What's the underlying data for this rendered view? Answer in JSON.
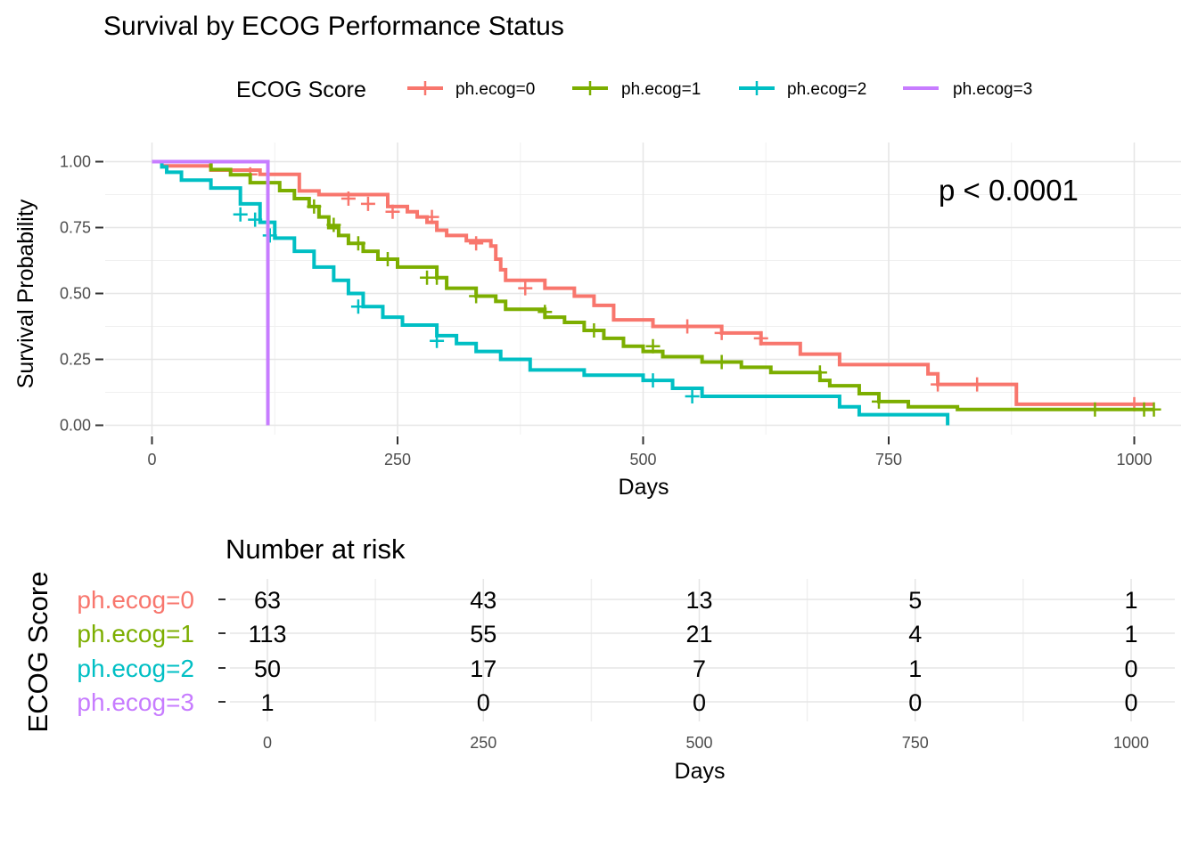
{
  "chart_data": [
    {
      "type": "line",
      "step": true,
      "title": "Survival by ECOG Performance Status",
      "xlabel": "Days",
      "ylabel": "Survival Probability",
      "xlim": [
        -50,
        1040
      ],
      "ylim": [
        -0.02,
        1.03
      ],
      "x_ticks": [
        0,
        250,
        500,
        750,
        1000
      ],
      "y_ticks": [
        0.0,
        0.25,
        0.5,
        0.75,
        1.0
      ],
      "y_tick_labels": [
        "0.00",
        "0.25",
        "0.50",
        "0.75",
        "1.00"
      ],
      "grid": true,
      "legend": {
        "title": "ECOG Score",
        "position": "top",
        "entries": [
          "ph.ecog=0",
          "ph.ecog=1",
          "ph.ecog=2",
          "ph.ecog=3"
        ]
      },
      "annotation": "p < 0.0001",
      "series": [
        {
          "name": "ph.ecog=0",
          "color": "#F8766D",
          "x": [
            0,
            10,
            60,
            110,
            150,
            170,
            240,
            260,
            270,
            280,
            290,
            300,
            320,
            345,
            350,
            355,
            360,
            400,
            430,
            450,
            470,
            510,
            560,
            580,
            620,
            650,
            660,
            700,
            740,
            790,
            800,
            850,
            880,
            1020
          ],
          "y": [
            1.0,
            0.984,
            0.968,
            0.952,
            0.889,
            0.875,
            0.83,
            0.81,
            0.79,
            0.77,
            0.74,
            0.72,
            0.7,
            0.68,
            0.63,
            0.59,
            0.55,
            0.52,
            0.49,
            0.455,
            0.4,
            0.375,
            0.375,
            0.35,
            0.31,
            0.31,
            0.27,
            0.23,
            0.23,
            0.195,
            0.155,
            0.155,
            0.08,
            0.08
          ],
          "censors": [
            [
              100,
              0.952
            ],
            [
              200,
              0.86
            ],
            [
              220,
              0.84
            ],
            [
              245,
              0.81
            ],
            [
              285,
              0.79
            ],
            [
              330,
              0.69
            ],
            [
              380,
              0.52
            ],
            [
              545,
              0.375
            ],
            [
              580,
              0.35
            ],
            [
              620,
              0.33
            ],
            [
              800,
              0.155
            ],
            [
              840,
              0.155
            ],
            [
              1000,
              0.08
            ]
          ]
        },
        {
          "name": "ph.ecog=1",
          "color": "#7CAE00",
          "x": [
            0,
            60,
            80,
            100,
            130,
            145,
            160,
            170,
            180,
            190,
            200,
            215,
            230,
            250,
            290,
            300,
            330,
            350,
            360,
            400,
            420,
            440,
            460,
            480,
            500,
            520,
            560,
            600,
            630,
            680,
            690,
            720,
            740,
            770,
            820,
            900,
            960,
            1020
          ],
          "y": [
            1.0,
            0.97,
            0.95,
            0.92,
            0.89,
            0.86,
            0.83,
            0.79,
            0.75,
            0.72,
            0.69,
            0.66,
            0.63,
            0.6,
            0.56,
            0.52,
            0.49,
            0.47,
            0.44,
            0.41,
            0.39,
            0.36,
            0.33,
            0.3,
            0.28,
            0.26,
            0.24,
            0.22,
            0.2,
            0.17,
            0.15,
            0.12,
            0.09,
            0.07,
            0.06,
            0.06,
            0.06,
            0.06
          ],
          "censors": [
            [
              165,
              0.83
            ],
            [
              185,
              0.76
            ],
            [
              210,
              0.69
            ],
            [
              240,
              0.63
            ],
            [
              280,
              0.56
            ],
            [
              290,
              0.56
            ],
            [
              330,
              0.49
            ],
            [
              400,
              0.43
            ],
            [
              450,
              0.36
            ],
            [
              510,
              0.3
            ],
            [
              580,
              0.24
            ],
            [
              680,
              0.2
            ],
            [
              740,
              0.09
            ],
            [
              960,
              0.06
            ],
            [
              1010,
              0.06
            ],
            [
              1020,
              0.06
            ]
          ]
        },
        {
          "name": "ph.ecog=2",
          "color": "#00BFC4",
          "x": [
            0,
            10,
            15,
            30,
            60,
            90,
            110,
            125,
            145,
            165,
            185,
            200,
            215,
            235,
            255,
            290,
            310,
            330,
            355,
            385,
            440,
            500,
            530,
            560,
            610,
            650,
            700,
            720,
            770,
            810
          ],
          "y": [
            1.0,
            0.98,
            0.96,
            0.93,
            0.9,
            0.84,
            0.77,
            0.71,
            0.66,
            0.6,
            0.55,
            0.5,
            0.45,
            0.41,
            0.38,
            0.34,
            0.31,
            0.28,
            0.25,
            0.21,
            0.19,
            0.17,
            0.14,
            0.11,
            0.11,
            0.11,
            0.07,
            0.04,
            0.04,
            0.0
          ],
          "censors": [
            [
              90,
              0.8
            ],
            [
              105,
              0.78
            ],
            [
              120,
              0.72
            ],
            [
              210,
              0.45
            ],
            [
              290,
              0.32
            ],
            [
              510,
              0.17
            ],
            [
              550,
              0.11
            ]
          ]
        },
        {
          "name": "ph.ecog=3",
          "color": "#C77CFF",
          "x": [
            0,
            118,
            118
          ],
          "y": [
            1.0,
            1.0,
            0.0
          ],
          "censors": []
        }
      ]
    },
    {
      "type": "table",
      "title": "Number at risk",
      "ylabel": "ECOG Score",
      "xlabel": "Days",
      "columns": [
        0,
        250,
        500,
        750,
        1000
      ],
      "rows": [
        {
          "label": "ph.ecog=0",
          "color": "#F8766D",
          "values": [
            63,
            43,
            13,
            5,
            1
          ]
        },
        {
          "label": "ph.ecog=1",
          "color": "#7CAE00",
          "values": [
            113,
            55,
            21,
            4,
            1
          ]
        },
        {
          "label": "ph.ecog=2",
          "color": "#00BFC4",
          "values": [
            50,
            17,
            7,
            1,
            0
          ]
        },
        {
          "label": "ph.ecog=3",
          "color": "#C77CFF",
          "values": [
            1,
            0,
            0,
            0,
            0
          ]
        }
      ]
    }
  ]
}
